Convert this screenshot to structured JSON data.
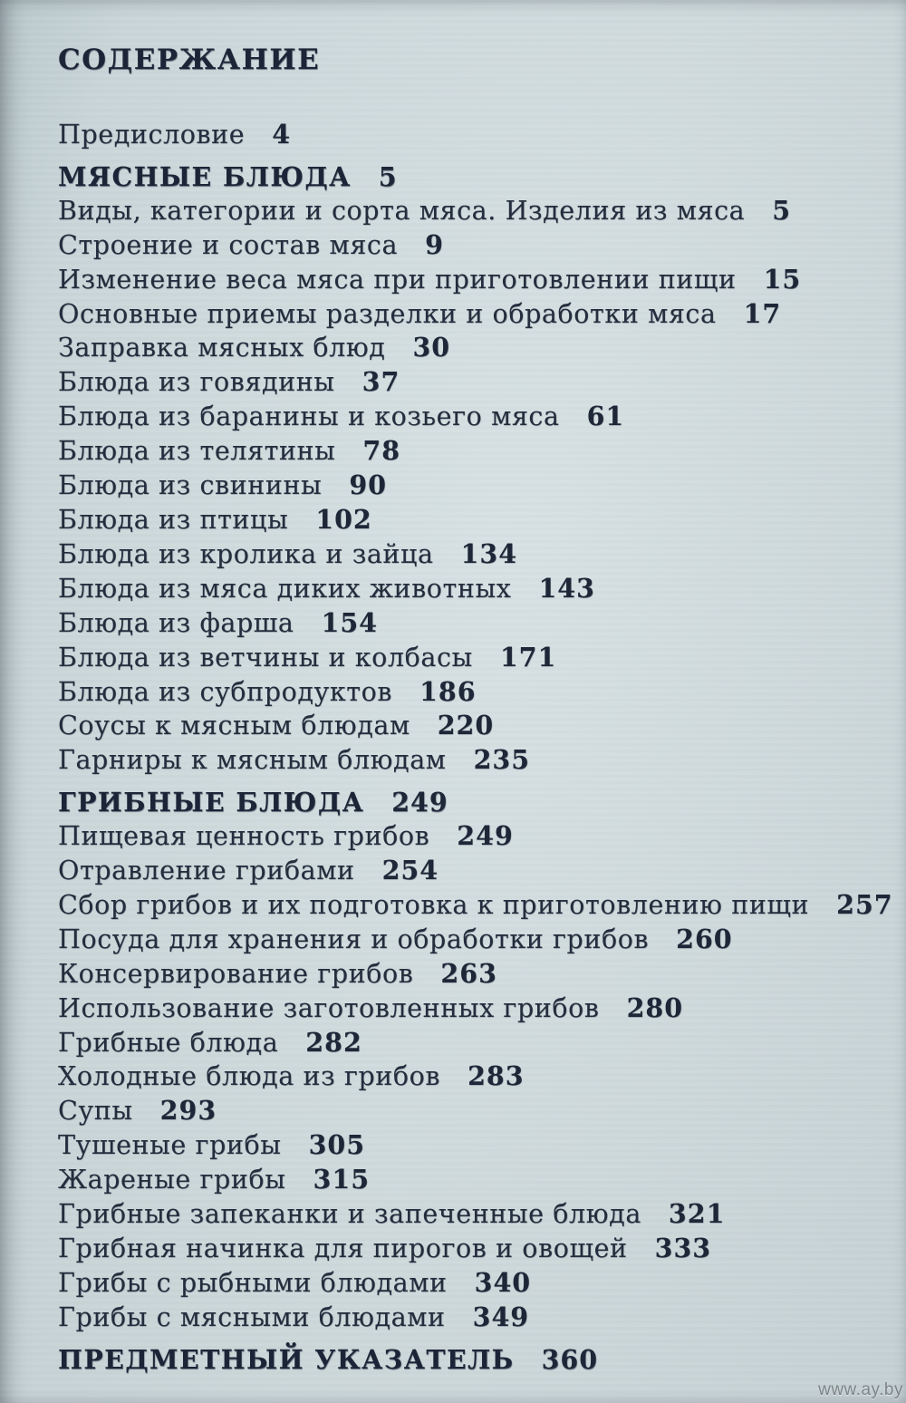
{
  "page": {
    "title": "СОДЕРЖАНИЕ",
    "watermark": "www.ay.by",
    "colors": {
      "paper": "#d0dce0",
      "ink": "#242d3d",
      "watermark": "#788083"
    }
  },
  "toc": {
    "entries": [
      {
        "label": "Предисловие",
        "page": "4",
        "style": "normal"
      },
      {
        "label": "МЯСНЫЕ БЛЮДА",
        "page": "5",
        "style": "header"
      },
      {
        "label": "Виды, категории и сорта мяса. Изделия из мяса",
        "page": "5",
        "style": "normal"
      },
      {
        "label": "Строение и состав мяса",
        "page": "9",
        "style": "normal"
      },
      {
        "label": "Изменение веса мяса при приготовлении пищи",
        "page": "15",
        "style": "normal"
      },
      {
        "label": "Основные приемы разделки и обработки мяса",
        "page": "17",
        "style": "normal"
      },
      {
        "label": "Заправка мясных блюд",
        "page": "30",
        "style": "normal"
      },
      {
        "label": "Блюда из говядины",
        "page": "37",
        "style": "normal"
      },
      {
        "label": "Блюда из баранины и козьего мяса",
        "page": "61",
        "style": "normal"
      },
      {
        "label": "Блюда из телятины",
        "page": "78",
        "style": "normal"
      },
      {
        "label": "Блюда из свинины",
        "page": "90",
        "style": "normal"
      },
      {
        "label": "Блюда из птицы",
        "page": "102",
        "style": "normal"
      },
      {
        "label": "Блюда из кролика и зайца",
        "page": "134",
        "style": "normal"
      },
      {
        "label": "Блюда из мяса диких животных",
        "page": "143",
        "style": "normal"
      },
      {
        "label": "Блюда из фарша",
        "page": "154",
        "style": "normal"
      },
      {
        "label": "Блюда из ветчины и колбасы",
        "page": "171",
        "style": "normal"
      },
      {
        "label": "Блюда из субпродуктов",
        "page": "186",
        "style": "normal"
      },
      {
        "label": "Соусы к мясным блюдам",
        "page": "220",
        "style": "normal"
      },
      {
        "label": "Гарниры к мясным блюдам",
        "page": "235",
        "style": "normal"
      },
      {
        "label": "ГРИБНЫЕ БЛЮДА",
        "page": "249",
        "style": "header"
      },
      {
        "label": "Пищевая ценность грибов",
        "page": "249",
        "style": "normal"
      },
      {
        "label": "Отравление грибами",
        "page": "254",
        "style": "normal"
      },
      {
        "label": "Сбор грибов и их подготовка к приготовлению пищи",
        "page": "257",
        "style": "normal"
      },
      {
        "label": "Посуда для хранения и обработки грибов",
        "page": "260",
        "style": "normal"
      },
      {
        "label": "Консервирование грибов",
        "page": "263",
        "style": "normal"
      },
      {
        "label": "Использование заготовленных грибов",
        "page": "280",
        "style": "normal"
      },
      {
        "label": "Грибные блюда",
        "page": "282",
        "style": "normal"
      },
      {
        "label": "Холодные блюда из грибов",
        "page": "283",
        "style": "normal"
      },
      {
        "label": "Супы",
        "page": "293",
        "style": "normal"
      },
      {
        "label": "Тушеные грибы",
        "page": "305",
        "style": "normal"
      },
      {
        "label": "Жареные грибы",
        "page": "315",
        "style": "normal"
      },
      {
        "label": "Грибные запеканки и запеченные блюда",
        "page": "321",
        "style": "normal"
      },
      {
        "label": "Грибная начинка для пирогов и овощей",
        "page": "333",
        "style": "normal"
      },
      {
        "label": "Грибы с рыбными блюдами",
        "page": "340",
        "style": "normal"
      },
      {
        "label": "Грибы с мясными блюдами",
        "page": "349",
        "style": "normal"
      },
      {
        "label": "ПРЕДМЕТНЫЙ УКАЗАТЕЛЬ",
        "page": "360",
        "style": "header"
      }
    ]
  }
}
